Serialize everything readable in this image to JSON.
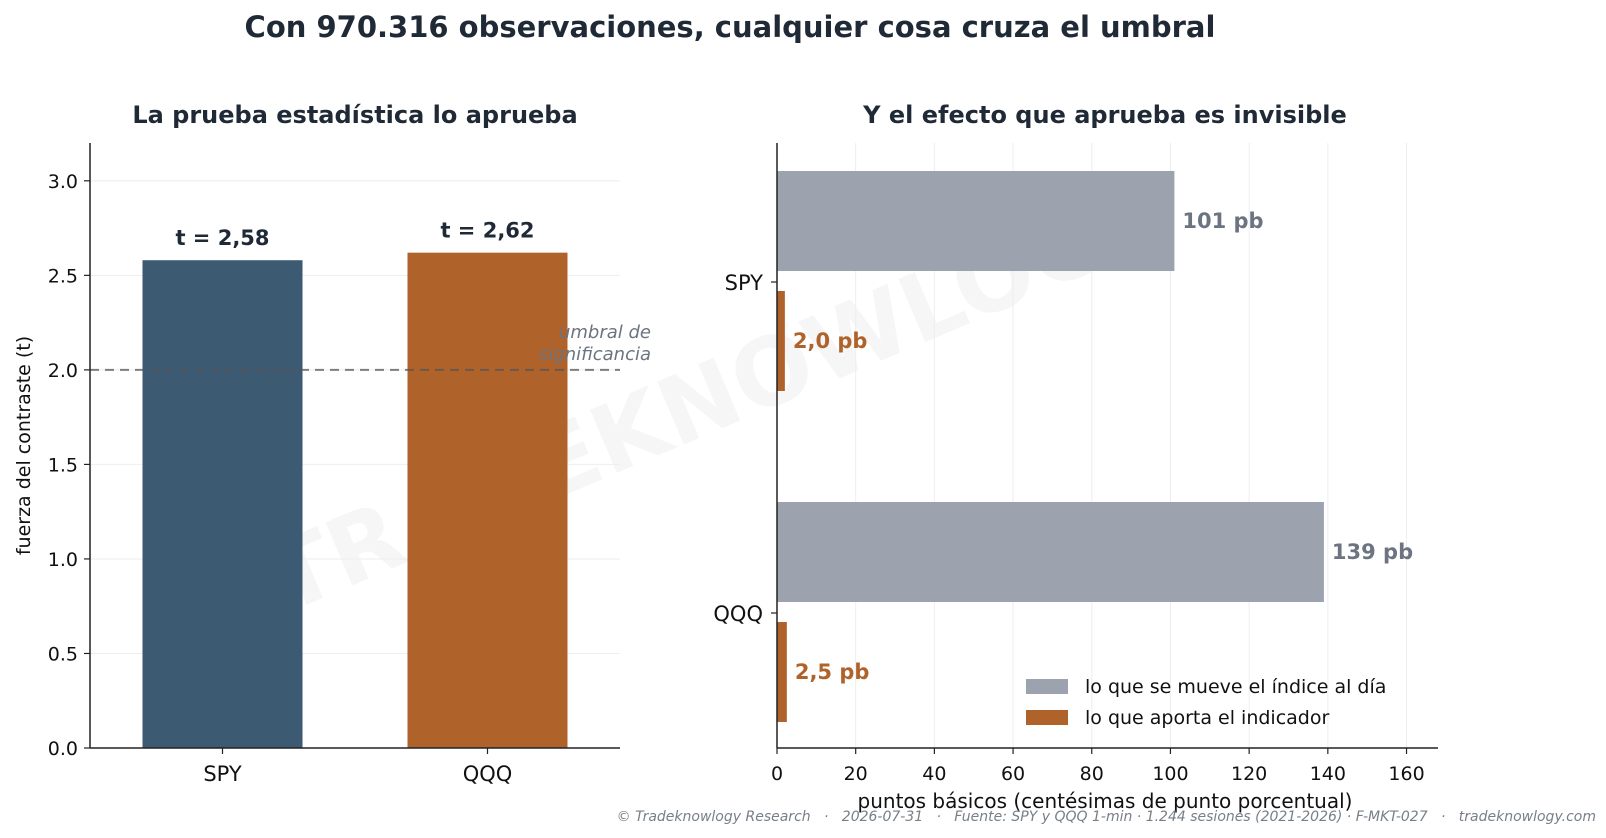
{
  "title": "Con 970.316 observaciones, cualquier cosa cruza el umbral",
  "watermark": "TRADEKNOWLOGY",
  "footer": "© Tradeknowlogy Research   ·   2026-07-31   ·   Fuente: SPY y QQQ 1-min · 1.244 sesiones (2021-2026) · F-MKT-027   ·   tradeknowlogy.com",
  "chart_data": [
    {
      "type": "bar",
      "title": "La prueba estadística lo aprueba",
      "xlabel": "",
      "ylabel": "fuerza del contraste (t)",
      "categories": [
        "SPY",
        "QQQ"
      ],
      "values": [
        2.58,
        2.62
      ],
      "value_labels": [
        "t = 2,58",
        "t = 2,62"
      ],
      "colors": [
        "#3d5a73",
        "#b0622b"
      ],
      "ylim": [
        0,
        3.2
      ],
      "yticks": [
        0.0,
        0.5,
        1.0,
        1.5,
        2.0,
        2.5,
        3.0
      ],
      "ytick_labels": [
        "0.0",
        "0.5",
        "1.0",
        "1.5",
        "2.0",
        "2.5",
        "3.0"
      ],
      "grid": "y",
      "threshold": {
        "value": 2.0,
        "label_line1": "umbral de",
        "label_line2": "significancia"
      }
    },
    {
      "type": "bar",
      "orientation": "horizontal",
      "title": "Y el efecto que aprueba es invisible",
      "xlabel": "puntos básicos (centésimas de punto porcentual)",
      "ylabel": "",
      "categories": [
        "SPY",
        "QQQ"
      ],
      "series": [
        {
          "name": "lo que se mueve el índice al día",
          "values": [
            101,
            139
          ],
          "value_labels": [
            "101 pb",
            "139 pb"
          ],
          "color": "#9ca3ae",
          "label_color": "#6b7480"
        },
        {
          "name": "lo que aporta el indicador",
          "values": [
            2.0,
            2.5
          ],
          "value_labels": [
            "2,0 pb",
            "2,5 pb"
          ],
          "color": "#b0622b",
          "label_color": "#b0622b"
        }
      ],
      "xlim": [
        0,
        168
      ],
      "xticks": [
        0,
        20,
        40,
        60,
        80,
        100,
        120,
        140,
        160
      ],
      "xtick_labels": [
        "0",
        "20",
        "40",
        "60",
        "80",
        "100",
        "120",
        "140",
        "160"
      ],
      "grid": "x",
      "legend": "bottom-right"
    }
  ]
}
